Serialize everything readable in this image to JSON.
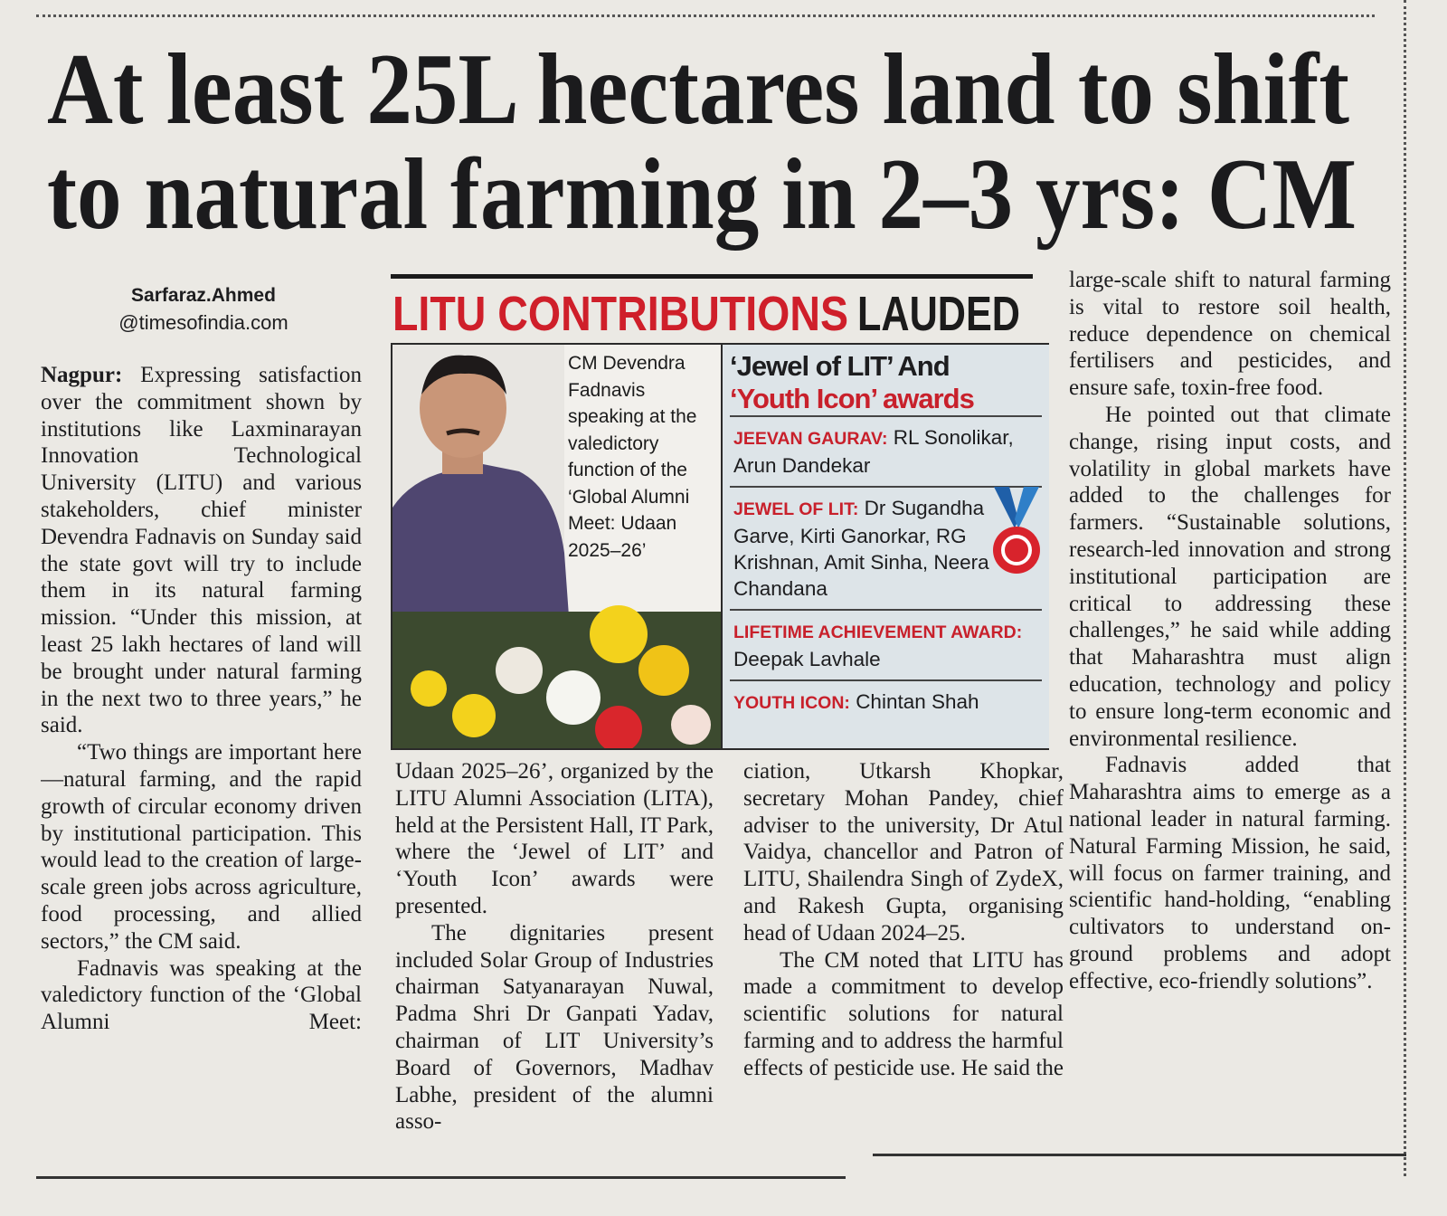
{
  "headline": {
    "lines": [
      "At least 25L hectares land to shift",
      "to natural farming in 2–3 yrs: CM"
    ]
  },
  "byline": {
    "name": "Sarfaraz.Ahmed",
    "handle": "@timesofindia.com"
  },
  "columns": [
    {
      "dateline": "Nagpur:",
      "paragraphs": [
        "Expressing satisfaction over the commitment shown by institutions like Laxminarayan Innovation Technological University (LITU) and various stakeholders, chief minister Devendra Fadnavis on Sunday said the state govt will try to include them in its natural farming mission. “Under this mission, at least 25 lakh hectares of land will be brought under natural farming in the next two to three years,” he said.",
        "“Two things are important here—natural farming, and the rapid growth of circular economy driven by institutional participation. This would lead to the creation of large-scale green jobs across agriculture, food processing, and allied sectors,” the CM said.",
        "Fadnavis was speaking at the valedictory function of the ‘Global Alumni Meet:"
      ]
    },
    {
      "paragraphs": [
        "Udaan 2025–26’, organized by the LITU Alumni Association (LITA), held at the Persistent Hall, IT Park, where the ‘Jewel of LIT’ and ‘Youth Icon’ awards were presented.",
        "The dignitaries present included Solar Group of Industries chairman Satyanarayan Nuwal, Padma Shri Dr Ganpati Yadav, chairman of LIT University’s Board of Governors, Madhav Labhe, president of the alumni asso-"
      ]
    },
    {
      "paragraphs": [
        "ciation, Utkarsh Khopkar, secretary Mohan Pandey, chief adviser to the university, Dr Atul Vaidya, chancellor and Patron of LITU, Shailendra Singh of ZydeX, and Rakesh Gupta, organising head of Udaan 2024–25.",
        "The CM noted that LITU has made a commitment to develop scientific solutions for natural farming and to address the harmful effects of pesticide use. He said the"
      ]
    },
    {
      "paragraphs": [
        "large-scale shift to natural farming is vital to restore soil health, reduce dependence on chemical fertilisers and pesticides, and ensure safe, toxin-free food.",
        "He pointed out that climate change, rising input costs, and volatility in global markets have added to the challenges for farmers. “Sustainable solutions, research-led innovation and strong institutional participation are critical to addressing these challenges,” he said while adding that Maharashtra must align education, technology and policy to ensure long-term economic and environmental resilience.",
        "Fadnavis added that Maharashtra aims to emerge as a national leader in natural farming. Natural Farming Mission, he said, will focus on farmer training, and scientific hand-holding, “enabling cultivators to understand on-ground problems and adopt effective, eco-friendly solutions”."
      ]
    }
  ],
  "sidebar": {
    "title_red": "LITU CONTRIBUTIONS",
    "title_black": "LAUDED",
    "photo_caption": "CM Devendra Fadnavis speaking at the valedictory function of the ‘Global Alumni Meet: Udaan 2025–26’",
    "awards_heading": [
      "‘Jewel of LIT’ And",
      "‘Youth Icon’ awards"
    ],
    "awards": [
      {
        "label": "JEEVAN GAURAV:",
        "names": "RL Sonolikar, Arun Dandekar"
      },
      {
        "label": "JEWEL OF LIT:",
        "names": "Dr Sugandha Garve, Kirti Ganorkar, RG Krishnan, Amit Sinha, Neera Chandana"
      },
      {
        "label": "LIFETIME ACHIEVEMENT AWARD:",
        "names": "Deepak Lavhale"
      },
      {
        "label": "YOUTH ICON:",
        "names": "Chintan Shah"
      }
    ]
  }
}
